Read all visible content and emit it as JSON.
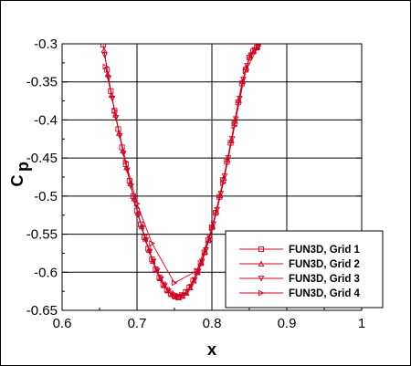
{
  "chart_data": {
    "type": "line",
    "title": "",
    "xlabel": "x",
    "ylabel": "C",
    "ylabel_subscript": "p",
    "xlim": [
      0.6,
      1.0
    ],
    "ylim": [
      -0.65,
      -0.3
    ],
    "xticks": [
      0.6,
      0.7,
      0.8,
      0.9,
      1.0
    ],
    "xtick_labels": [
      "0.6",
      "0.7",
      "0.8",
      "0.9",
      "1"
    ],
    "yticks": [
      -0.3,
      -0.35,
      -0.4,
      -0.45,
      -0.5,
      -0.55,
      -0.6,
      -0.65
    ],
    "ytick_labels": [
      "-0.3",
      "-0.35",
      "-0.4",
      "-0.45",
      "-0.5",
      "-0.55",
      "-0.6",
      "-0.65"
    ],
    "grid": true,
    "legend_position": "bottom-right",
    "line_color": "#d2001e",
    "series": [
      {
        "name": "FUN3D, Grid 1",
        "marker": "square",
        "x": [
          0.655,
          0.66,
          0.665,
          0.67,
          0.675,
          0.68,
          0.685,
          0.69,
          0.695,
          0.7,
          0.705,
          0.71,
          0.715,
          0.72,
          0.725,
          0.73,
          0.735,
          0.74,
          0.745,
          0.75,
          0.755,
          0.76,
          0.765,
          0.77,
          0.775,
          0.78,
          0.785,
          0.79,
          0.795,
          0.8,
          0.805,
          0.81,
          0.815,
          0.82,
          0.825,
          0.83,
          0.835,
          0.84,
          0.845,
          0.85,
          0.855,
          0.86
        ],
        "y": [
          -0.301,
          -0.334,
          -0.362,
          -0.388,
          -0.412,
          -0.436,
          -0.458,
          -0.48,
          -0.5,
          -0.519,
          -0.537,
          -0.554,
          -0.569,
          -0.583,
          -0.596,
          -0.607,
          -0.616,
          -0.623,
          -0.628,
          -0.631,
          -0.632,
          -0.63,
          -0.626,
          -0.62,
          -0.611,
          -0.6,
          -0.588,
          -0.574,
          -0.558,
          -0.541,
          -0.522,
          -0.501,
          -0.479,
          -0.455,
          -0.43,
          -0.404,
          -0.377,
          -0.352,
          -0.334,
          -0.318,
          -0.31,
          -0.305
        ]
      },
      {
        "name": "FUN3D, Grid 2",
        "marker": "triangle-up",
        "x": [
          0.656,
          0.661,
          0.666,
          0.671,
          0.676,
          0.681,
          0.686,
          0.691,
          0.696,
          0.701,
          0.706,
          0.711,
          0.716,
          0.721,
          0.726,
          0.731,
          0.736,
          0.741,
          0.746,
          0.751,
          0.756,
          0.761,
          0.766,
          0.771,
          0.776,
          0.781,
          0.786,
          0.791,
          0.796,
          0.801,
          0.806,
          0.811,
          0.816,
          0.821,
          0.826,
          0.831,
          0.836,
          0.841,
          0.846,
          0.851,
          0.856,
          0.861
        ],
        "y": [
          -0.308,
          -0.34,
          -0.367,
          -0.393,
          -0.417,
          -0.44,
          -0.462,
          -0.483,
          -0.503,
          -0.522,
          -0.54,
          -0.556,
          -0.571,
          -0.585,
          -0.597,
          -0.608,
          -0.617,
          -0.624,
          -0.629,
          -0.632,
          -0.633,
          -0.631,
          -0.627,
          -0.62,
          -0.611,
          -0.6,
          -0.587,
          -0.573,
          -0.557,
          -0.539,
          -0.52,
          -0.499,
          -0.476,
          -0.452,
          -0.427,
          -0.401,
          -0.374,
          -0.349,
          -0.331,
          -0.316,
          -0.309,
          -0.304
        ]
      },
      {
        "name": "FUN3D, Grid 3",
        "marker": "triangle-down",
        "x": [
          0.657,
          0.662,
          0.667,
          0.672,
          0.677,
          0.682,
          0.687,
          0.692,
          0.697,
          0.702,
          0.707,
          0.712,
          0.717,
          0.722,
          0.727,
          0.732,
          0.737,
          0.742,
          0.747,
          0.752,
          0.757,
          0.762,
          0.767,
          0.772,
          0.777,
          0.782,
          0.787,
          0.792,
          0.797,
          0.802,
          0.807,
          0.812,
          0.817,
          0.822,
          0.827,
          0.832,
          0.837,
          0.842,
          0.847,
          0.852,
          0.857,
          0.862
        ],
        "y": [
          -0.315,
          -0.345,
          -0.372,
          -0.397,
          -0.421,
          -0.444,
          -0.466,
          -0.487,
          -0.507,
          -0.525,
          -0.542,
          -0.558,
          -0.573,
          -0.586,
          -0.598,
          -0.609,
          -0.618,
          -0.625,
          -0.63,
          -0.633,
          -0.633,
          -0.631,
          -0.626,
          -0.619,
          -0.61,
          -0.599,
          -0.586,
          -0.571,
          -0.555,
          -0.537,
          -0.518,
          -0.497,
          -0.474,
          -0.45,
          -0.425,
          -0.399,
          -0.372,
          -0.347,
          -0.329,
          -0.315,
          -0.308,
          -0.304
        ]
      },
      {
        "name": "FUN3D, Grid 4",
        "marker": "triangle-right",
        "x": [
          0.658,
          0.67,
          0.685,
          0.7,
          0.72,
          0.75,
          0.78,
          0.8,
          0.815,
          0.83,
          0.845,
          0.862
        ],
        "y": [
          -0.33,
          -0.388,
          -0.455,
          -0.51,
          -0.562,
          -0.614,
          -0.598,
          -0.542,
          -0.483,
          -0.408,
          -0.336,
          -0.303
        ]
      }
    ]
  }
}
